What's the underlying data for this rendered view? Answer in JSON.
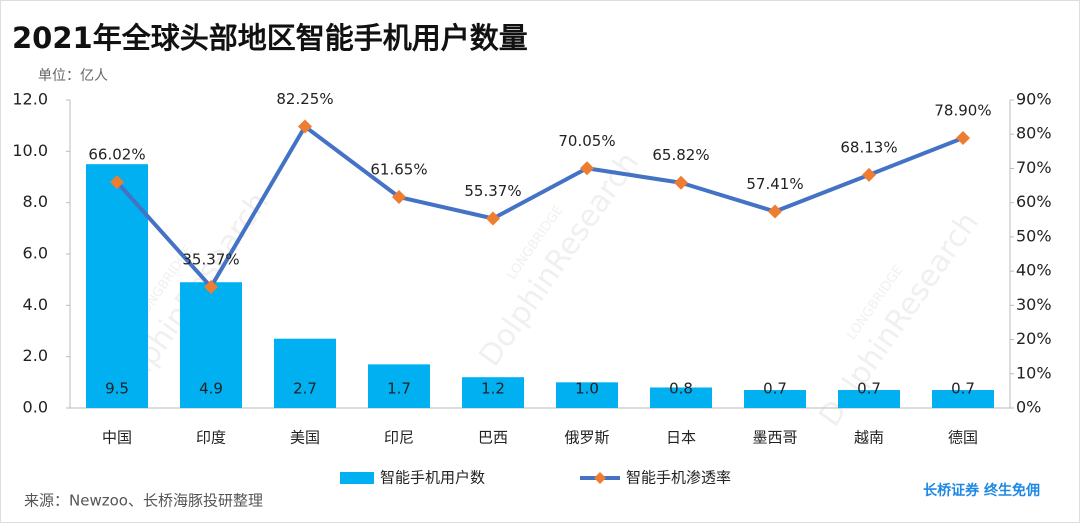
{
  "chart_data": {
    "type": "combo",
    "title": "2021年全球头部地区智能手机用户数量",
    "unit_label": "单位：亿人",
    "source": "来源：Newzoo、长桥海豚投研整理",
    "brand": "长桥证券 终生免佣",
    "watermark": [
      "LONGBRIDGE",
      "DolphinResearch"
    ],
    "categories": [
      "中国",
      "印度",
      "美国",
      "印尼",
      "巴西",
      "俄罗斯",
      "日本",
      "墨西哥",
      "越南",
      "德国"
    ],
    "series": [
      {
        "name": "智能手机用户数",
        "type": "bar",
        "color": "#00b0f0",
        "values": [
          9.5,
          4.9,
          2.7,
          1.7,
          1.2,
          1.0,
          0.8,
          0.7,
          0.7,
          0.7
        ],
        "value_labels": [
          "9.5",
          "4.9",
          "2.7",
          "1.7",
          "1.2",
          "1.0",
          "0.8",
          "0.7",
          "0.7",
          "0.7"
        ]
      },
      {
        "name": "智能手机渗透率",
        "type": "line",
        "color": "#4472c4",
        "marker_color": "#ed7d31",
        "axis": "y2",
        "values": [
          66.02,
          35.37,
          82.25,
          61.65,
          55.37,
          70.05,
          65.82,
          57.41,
          68.13,
          78.9
        ],
        "value_labels": [
          "66.02%",
          "35.37%",
          "82.25%",
          "61.65%",
          "55.37%",
          "70.05%",
          "65.82%",
          "57.41%",
          "68.13%",
          "78.90%"
        ]
      }
    ],
    "ylim": [
      0,
      12
    ],
    "yticks": [
      {
        "value": 0,
        "label": "0.0"
      },
      {
        "value": 2,
        "label": "2.0"
      },
      {
        "value": 4,
        "label": "4.0"
      },
      {
        "value": 6,
        "label": "6.0"
      },
      {
        "value": 8,
        "label": "8.0"
      },
      {
        "value": 10,
        "label": "10.0"
      },
      {
        "value": 12,
        "label": "12.0"
      }
    ],
    "y2lim": [
      0,
      90
    ],
    "y2ticks": [
      {
        "value": 0,
        "label": "0%"
      },
      {
        "value": 10,
        "label": "10%"
      },
      {
        "value": 20,
        "label": "20%"
      },
      {
        "value": 30,
        "label": "30%"
      },
      {
        "value": 40,
        "label": "40%"
      },
      {
        "value": 50,
        "label": "50%"
      },
      {
        "value": 60,
        "label": "60%"
      },
      {
        "value": 70,
        "label": "70%"
      },
      {
        "value": 80,
        "label": "80%"
      },
      {
        "value": 90,
        "label": "90%"
      }
    ],
    "legend": "bottom"
  }
}
